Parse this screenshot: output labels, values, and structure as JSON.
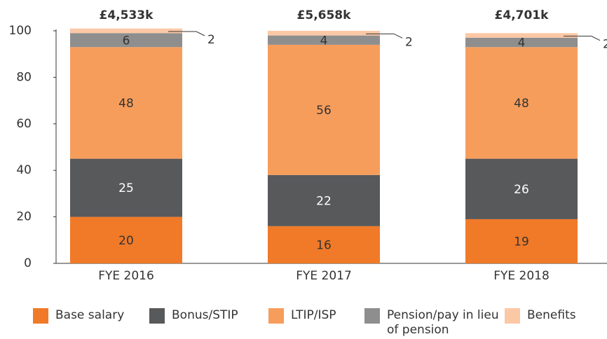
{
  "chart_data": {
    "type": "stacked_bar",
    "categories": [
      "FYE 2016",
      "FYE 2017",
      "FYE 2018"
    ],
    "annotations": [
      "£4,533k",
      "£5,658k",
      "£4,701k"
    ],
    "series": [
      {
        "name": "Base salary",
        "color": "#f07a28",
        "values": [
          20,
          16,
          19
        ]
      },
      {
        "name": "Bonus/STIP",
        "color": "#58595b",
        "values": [
          25,
          22,
          26
        ]
      },
      {
        "name": "LTIP/ISP",
        "color": "#f79d5c",
        "values": [
          48,
          56,
          48
        ]
      },
      {
        "name": "Pension/pay in lieu of pension",
        "color": "#8e8e8e",
        "values": [
          6,
          4,
          4
        ]
      },
      {
        "name": "Benefits",
        "color": "#fbc8a6",
        "values": [
          2,
          2,
          2
        ]
      }
    ],
    "ylim": [
      0,
      100
    ],
    "yticks": [
      0,
      20,
      40,
      60,
      80,
      100
    ],
    "grid": false,
    "legend": "bottom"
  }
}
